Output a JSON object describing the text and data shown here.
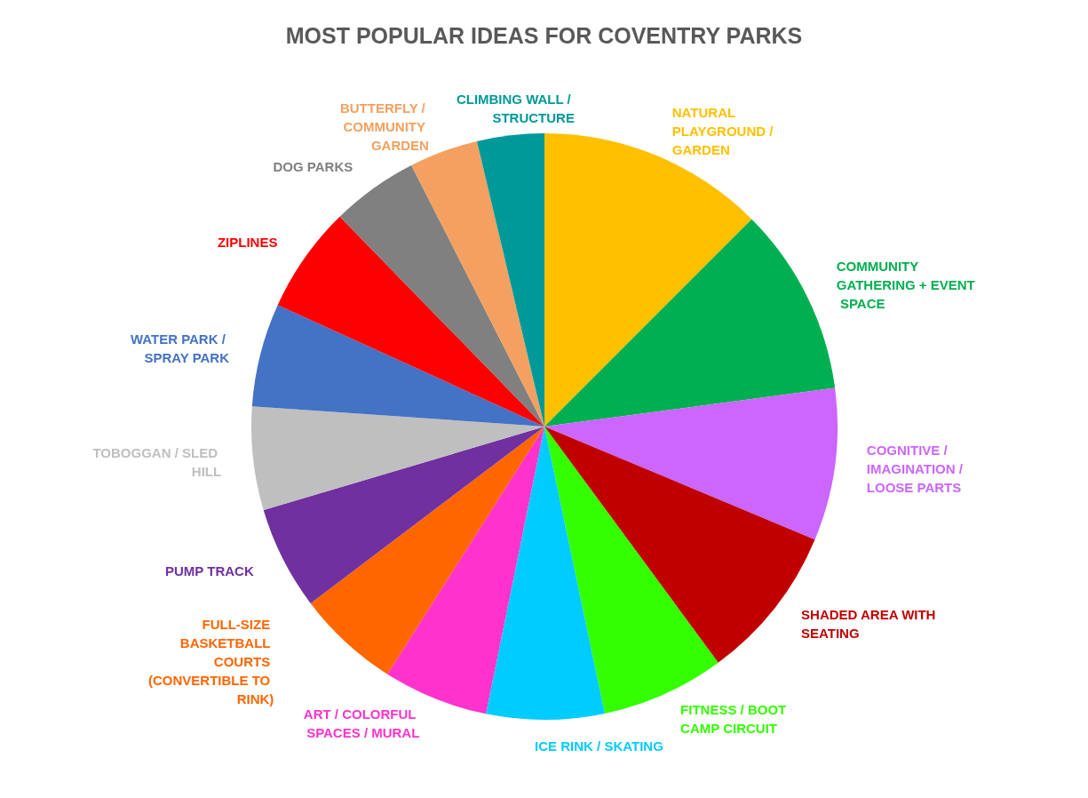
{
  "chart_data": {
    "type": "pie",
    "title": "MOST POPULAR IDEAS FOR COVENTRY PARKS",
    "categories": [
      "NATURAL PLAYGROUND / GARDEN",
      "COMMUNITY GATHERING + EVENT SPACE",
      "COGNITIVE / IMAGINATION / LOOSE PARTS",
      "SHADED AREA WITH SEATING",
      "FITNESS / BOOT CAMP CIRCUIT",
      "ICE RINK / SKATING",
      "ART / COLORFUL SPACES / MURAL",
      "FULL-SIZE BASKETBALL COURTS (CONVERTIBLE TO RINK)",
      "PUMP TRACK",
      "TOBOGGAN / SLED HILL",
      "WATER PARK / SPRAY PARK",
      "ZIPLINES",
      "DOG PARKS",
      "BUTTERFLY / COMMUNITY GARDEN",
      "CLIMBING WALL / STRUCTURE"
    ],
    "values": [
      12.5,
      10.4,
      8.4,
      8.6,
      6.8,
      6.5,
      5.8,
      5.7,
      5.7,
      5.7,
      5.7,
      5.9,
      4.8,
      3.8,
      3.7
    ],
    "colors": [
      "#ffc000",
      "#00b050",
      "#cc66ff",
      "#c00000",
      "#33ff00",
      "#00ccff",
      "#ff33cc",
      "#ff6600",
      "#7030a0",
      "#bfbfbf",
      "#4472c4",
      "#ff0000",
      "#808080",
      "#f4a060",
      "#009999"
    ],
    "legend": false
  }
}
